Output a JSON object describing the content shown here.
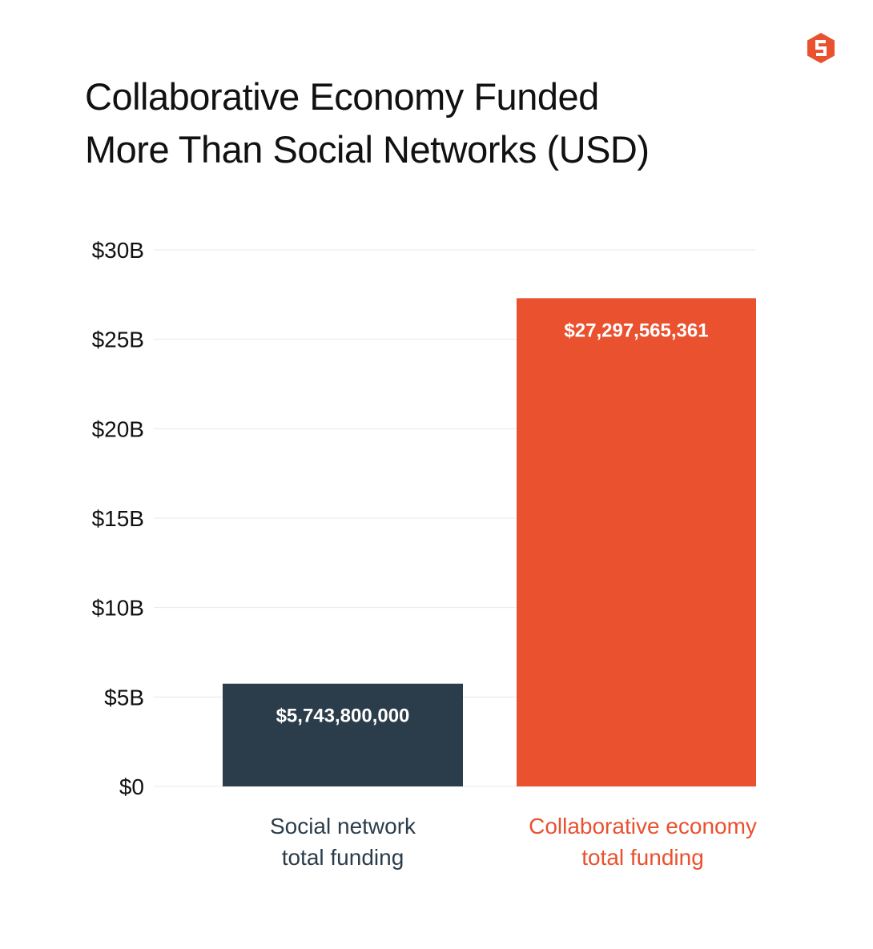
{
  "colors": {
    "social": "#2b3c4a",
    "collab": "#e9512f",
    "grid": "#e8e8e8",
    "text": "#111111"
  },
  "logo": {
    "icon": "brand-s-hexagon-icon",
    "color": "#e9512f"
  },
  "chart_data": {
    "type": "bar",
    "title_lines": [
      "Collaborative Economy Funded",
      "More Than Social Networks (USD)"
    ],
    "categories": [
      {
        "lines": [
          "Social network",
          "total funding"
        ],
        "color": "#2b3c4a"
      },
      {
        "lines": [
          "Collaborative economy",
          "total funding"
        ],
        "color": "#e9512f"
      }
    ],
    "values": [
      5743800000,
      27297565361
    ],
    "value_labels": [
      "$5,743,800,000",
      "$27,297,565,361"
    ],
    "ylim": [
      0,
      30000000000
    ],
    "yticks": [
      {
        "value": 0,
        "label": "$0"
      },
      {
        "value": 5000000000,
        "label": "$5B"
      },
      {
        "value": 10000000000,
        "label": "$10B"
      },
      {
        "value": 15000000000,
        "label": "$15B"
      },
      {
        "value": 20000000000,
        "label": "$20B"
      },
      {
        "value": 25000000000,
        "label": "$25B"
      },
      {
        "value": 30000000000,
        "label": "$30B"
      }
    ],
    "grid": true,
    "legend": "none"
  }
}
